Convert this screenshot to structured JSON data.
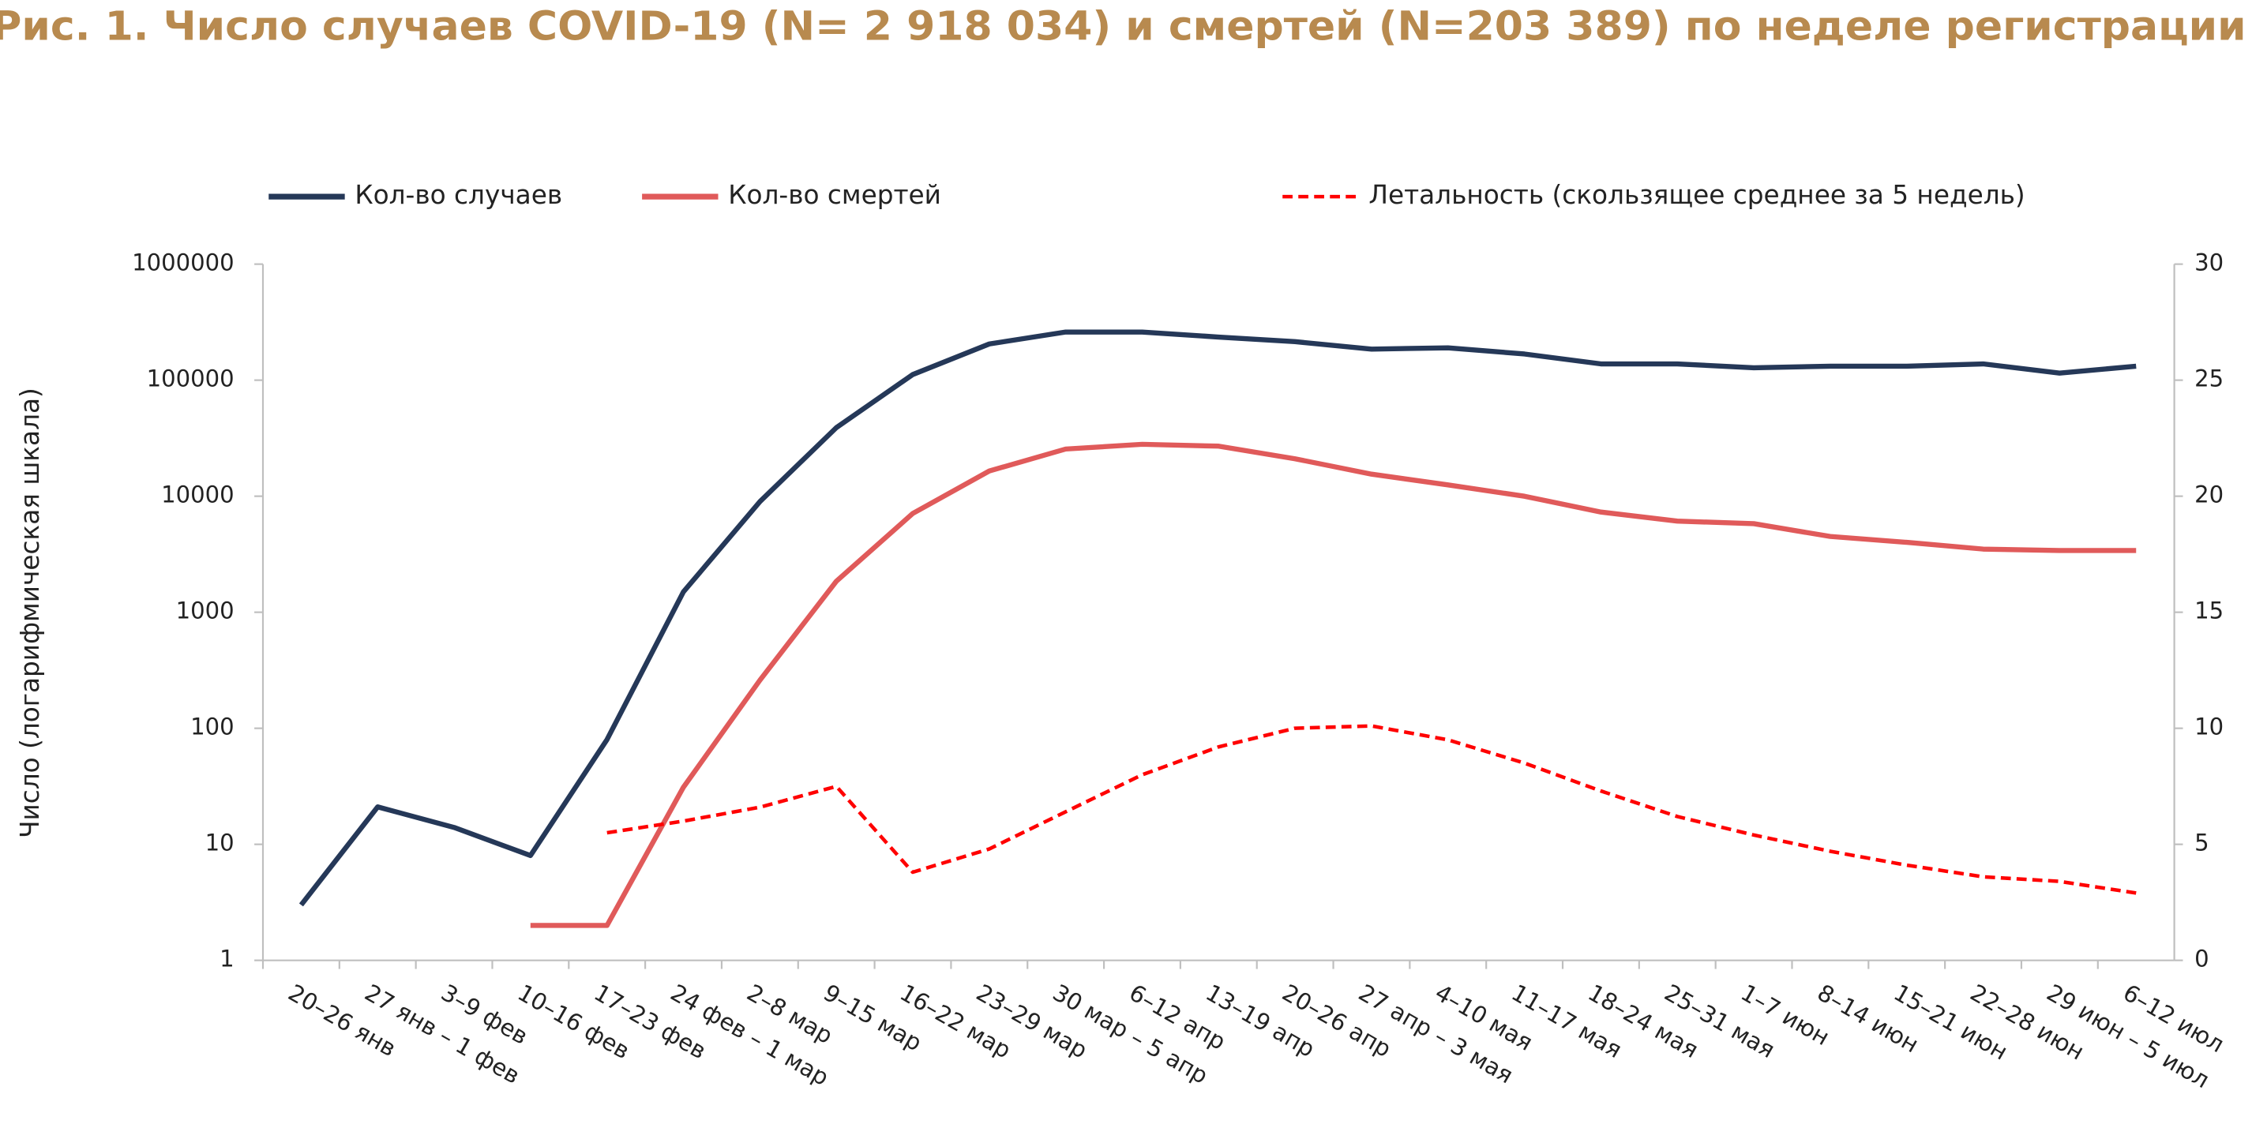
{
  "chart_data": {
    "type": "line",
    "title": "Рис. 1. Число случаев COVID-19 (N= 2 918 034) и смертей (N=203 389) по неделе регистрации",
    "y_label": "Число (логарифмическая шкала)",
    "categories": [
      "20–26 янв",
      "27 янв – 1 фев",
      "3–9 фев",
      "10–16 фев",
      "17–23 фев",
      "24 фев – 1 мар",
      "2–8 мар",
      "9–15 мар",
      "16–22 мар",
      "23–29 мар",
      "30 мар – 5 апр",
      "6–12 апр",
      "13–19 апр",
      "20–26 апр",
      "27 апр – 3 мая",
      "4–10 мая",
      "11–17 мая",
      "18–24 мая",
      "25–31 мая",
      "1–7 июн",
      "8–14 июн",
      "15–21 июн",
      "22–28 июн",
      "29 июн – 5 июл",
      "6–12 июл"
    ],
    "series": [
      {
        "name": "Кол-во случаев",
        "color": "#253858",
        "dashed": false,
        "values": [
          3,
          21,
          14,
          8,
          80,
          1500,
          9000,
          39000,
          112000,
          205000,
          260000,
          260000,
          235000,
          215000,
          185000,
          190000,
          168000,
          138000,
          138000,
          128000,
          132000,
          132000,
          138000,
          115000,
          132000
        ]
      },
      {
        "name": "Кол-во смертей",
        "color": "#e05a5a",
        "dashed": false,
        "values": [
          null,
          null,
          null,
          2,
          2,
          31,
          260,
          1850,
          7100,
          16500,
          25500,
          28000,
          27000,
          21000,
          15500,
          12500,
          10000,
          7300,
          6100,
          5800,
          4500,
          4000,
          3500,
          3400,
          3400
        ]
      },
      {
        "name": "Летальность (скользящее среднее за 5 недель)",
        "color": "#ff0000",
        "dashed": true,
        "axis": "y2",
        "values": [
          null,
          null,
          null,
          null,
          5.5,
          6.0,
          6.6,
          7.5,
          3.8,
          4.8,
          6.4,
          8.0,
          9.2,
          10.0,
          10.1,
          9.5,
          8.5,
          7.3,
          6.2,
          5.4,
          4.7,
          4.1,
          3.6,
          3.4,
          2.9
        ]
      }
    ],
    "ylog": true,
    "ylim": [
      1,
      1000000
    ],
    "yticks": [
      1,
      10,
      100,
      1000,
      10000,
      100000,
      1000000
    ],
    "y2lim": [
      0,
      30
    ],
    "y2ticks": [
      0,
      5,
      10,
      15,
      20,
      25,
      30
    ],
    "legend": "top"
  }
}
